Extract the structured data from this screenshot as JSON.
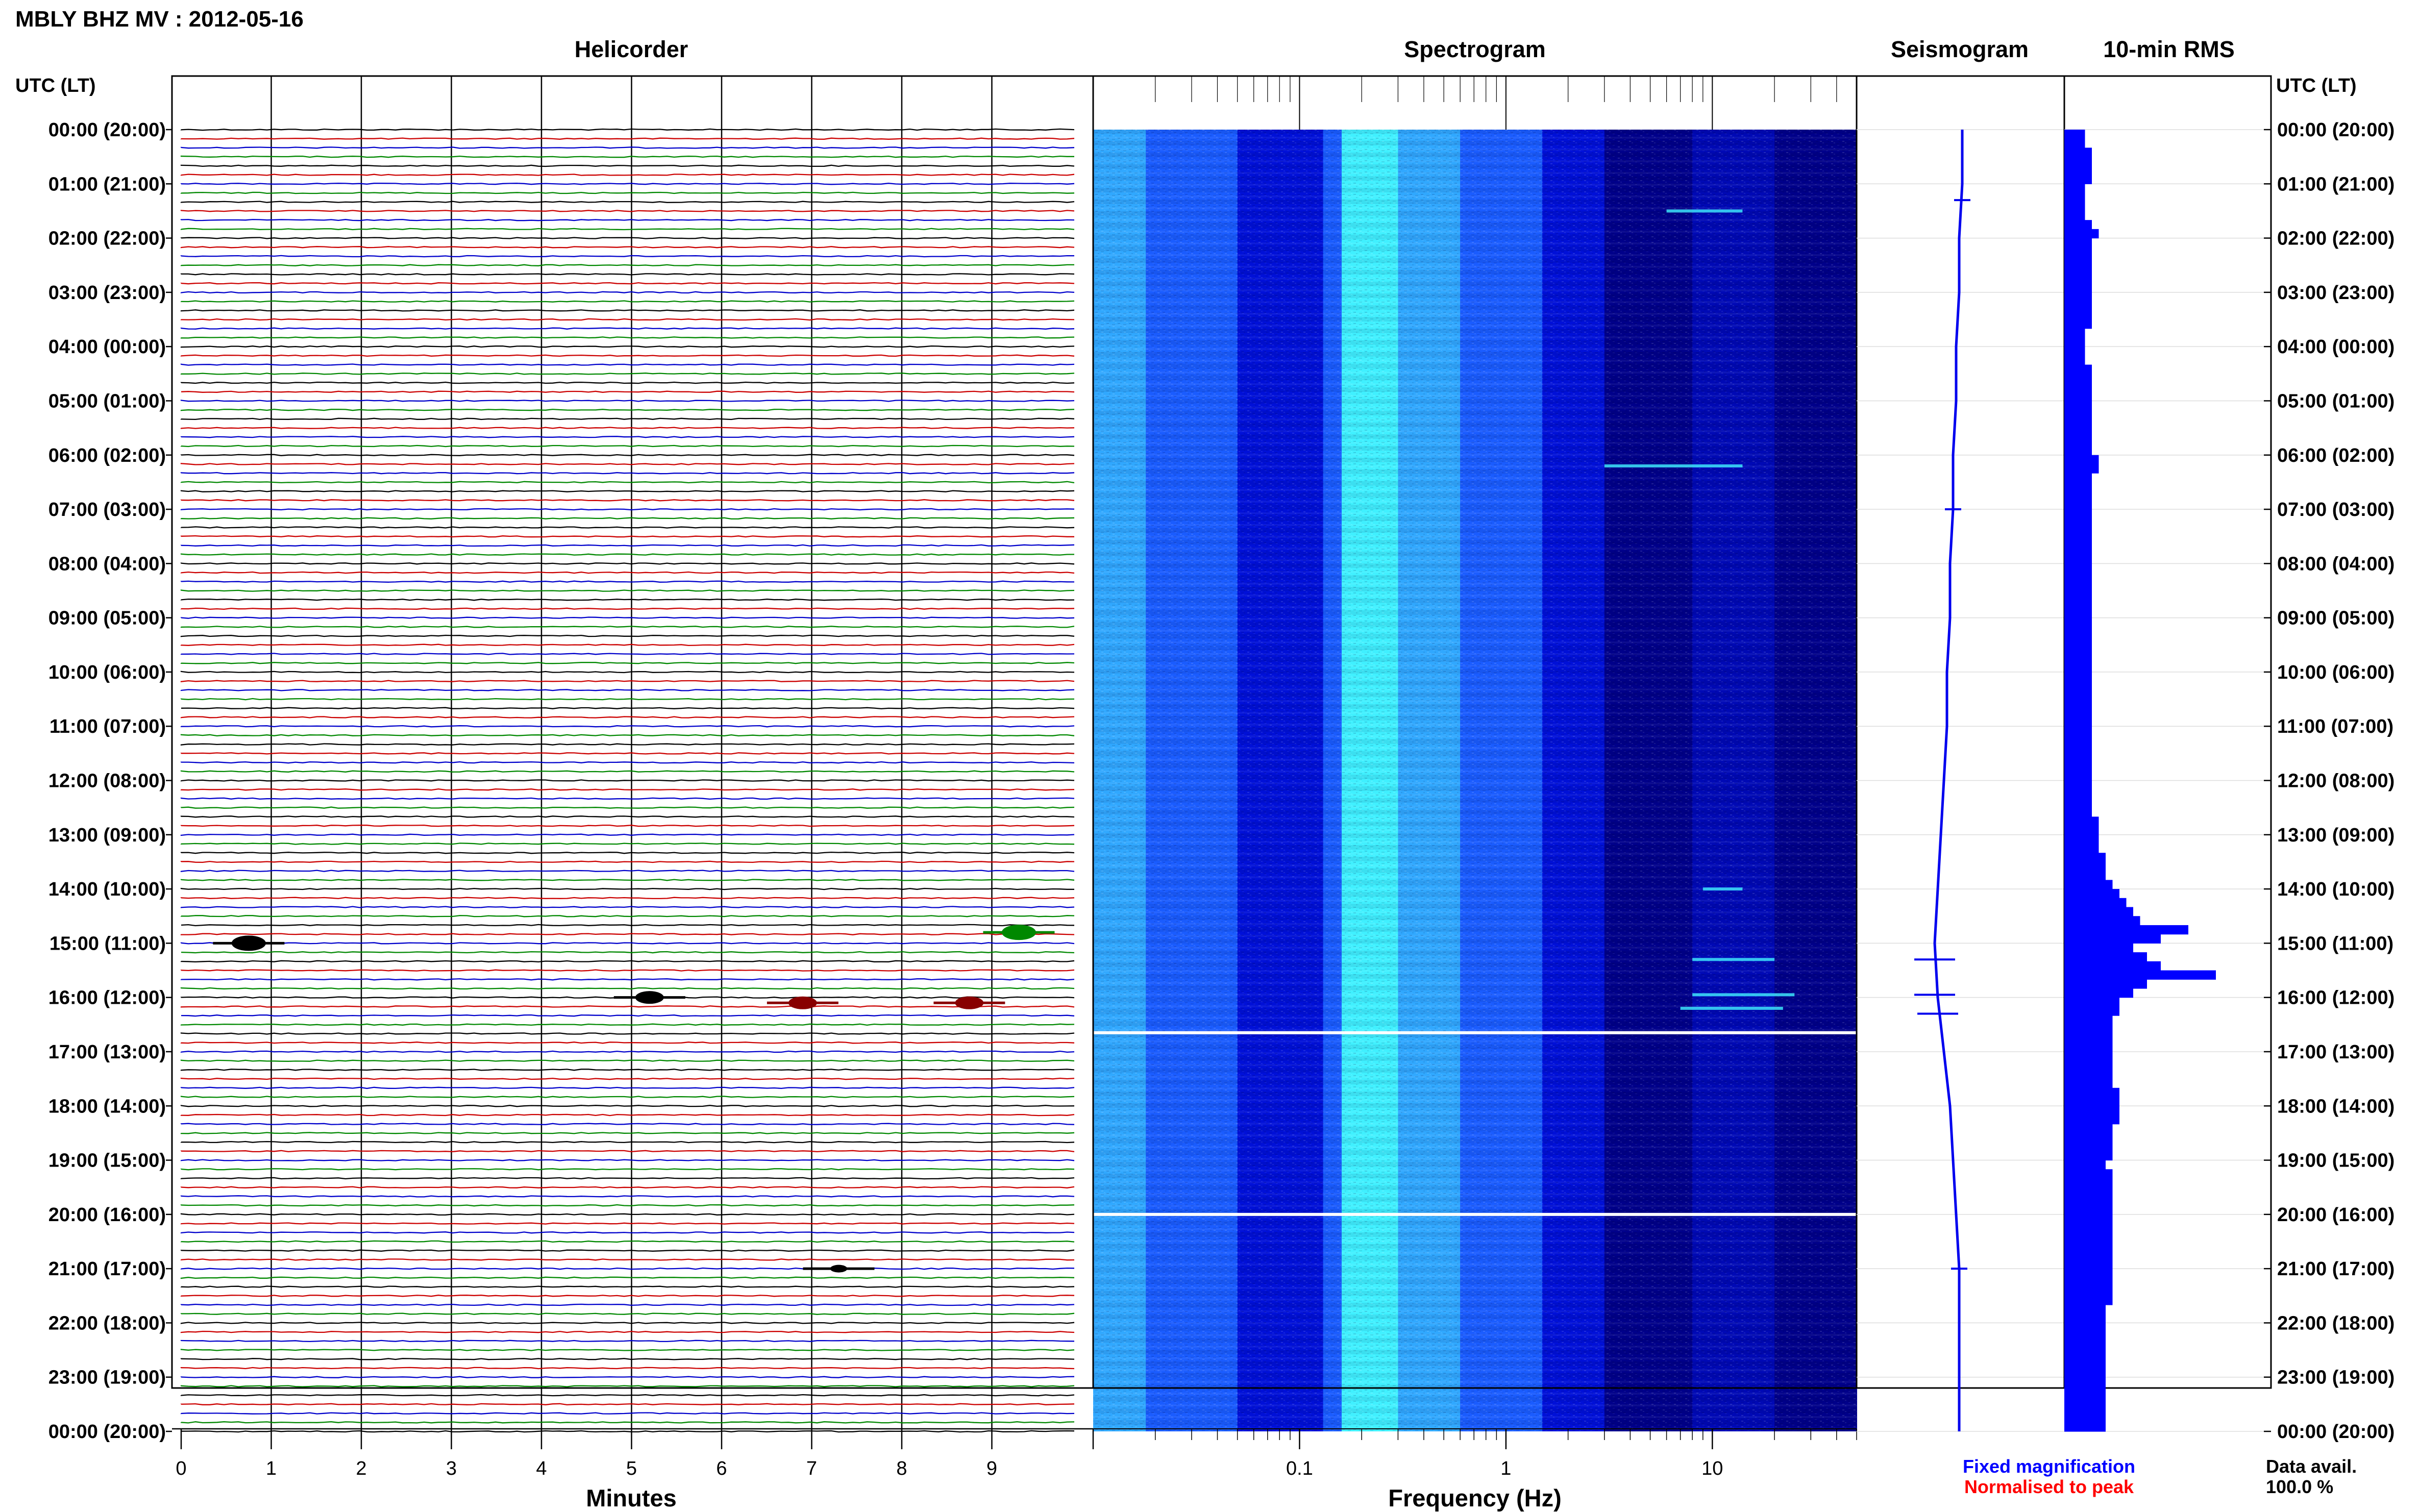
{
  "chart_data": {
    "type": "heatmap",
    "title": "MBLY BHZ MV : 2012-05-16",
    "panels": {
      "helicorder": "Helicorder",
      "spectrogram": "Spectrogram",
      "seismogram": "Seismogram",
      "rms": "10-min RMS"
    },
    "ylabel": "UTC (LT)",
    "ylabel_right": "UTC (LT)",
    "hours": [
      "00:00 (20:00)",
      "01:00 (21:00)",
      "02:00 (22:00)",
      "03:00 (23:00)",
      "04:00 (00:00)",
      "05:00 (01:00)",
      "06:00 (02:00)",
      "07:00 (03:00)",
      "08:00 (04:00)",
      "09:00 (05:00)",
      "10:00 (06:00)",
      "11:00 (07:00)",
      "12:00 (08:00)",
      "13:00 (09:00)",
      "14:00 (10:00)",
      "15:00 (11:00)",
      "16:00 (12:00)",
      "17:00 (13:00)",
      "18:00 (14:00)",
      "19:00 (15:00)",
      "20:00 (16:00)",
      "21:00 (17:00)",
      "22:00 (18:00)",
      "23:00 (19:00)",
      "00:00 (20:00)"
    ],
    "helicorder": {
      "xlabel": "Minutes",
      "xticks": [
        "0",
        "1",
        "2",
        "3",
        "4",
        "5",
        "6",
        "7",
        "8",
        "9"
      ],
      "xlim": [
        0,
        10
      ],
      "line_colors": [
        "#000000",
        "#cc0000",
        "#0000cc",
        "#008800"
      ],
      "lines_per_hour": 6,
      "events": [
        {
          "hour": 15.0,
          "minute": 0.75,
          "amp": 3.0,
          "color": "#000000"
        },
        {
          "hour": 14.8,
          "minute": 9.3,
          "amp": 3.0,
          "color": "#008800"
        },
        {
          "hour": 16.0,
          "minute": 5.2,
          "amp": 2.5,
          "color": "#000000"
        },
        {
          "hour": 16.1,
          "minute": 6.9,
          "amp": 2.5,
          "color": "#880000"
        },
        {
          "hour": 16.1,
          "minute": 8.75,
          "amp": 2.5,
          "color": "#880000"
        },
        {
          "hour": 21.0,
          "minute": 7.3,
          "amp": 1.5,
          "color": "#000000"
        }
      ]
    },
    "spectrogram": {
      "xlabel": "Frequency (Hz)",
      "xticks": [
        "0.1",
        "1",
        "10"
      ],
      "xscale": "log",
      "xlim": [
        0.01,
        50
      ],
      "gaps_hours": [
        16.65,
        20.0
      ],
      "colormap": [
        "#00008a",
        "#0010d8",
        "#1a5cff",
        "#30a8ff",
        "#40f0ff"
      ]
    },
    "seismogram": {
      "trend": [
        0,
        0,
        -1,
        -1,
        -2,
        -2,
        -3,
        -3,
        -4,
        -4,
        -5,
        -5,
        -6,
        -7,
        -8,
        -9,
        -8,
        -6,
        -4,
        -3,
        -2,
        -1,
        -1,
        -1,
        -1
      ],
      "spikes_hours": [
        1.3,
        7.0,
        15.3,
        15.95,
        16.3,
        21.0
      ]
    },
    "rms": {
      "values": [
        3,
        3,
        4,
        4,
        4,
        4,
        3,
        3,
        3,
        3,
        4,
        5,
        4,
        4,
        4,
        4,
        4,
        4,
        4,
        4,
        4,
        4,
        3,
        3,
        3,
        3,
        4,
        4,
        4,
        4,
        4,
        4,
        4,
        4,
        4,
        4,
        5,
        5,
        4,
        4,
        4,
        4,
        4,
        4,
        4,
        4,
        4,
        4,
        4,
        4,
        4,
        4,
        4,
        4,
        4,
        4,
        4,
        4,
        4,
        4,
        4,
        4,
        4,
        4,
        4,
        4,
        4,
        4,
        4,
        4,
        4,
        4,
        4,
        4,
        4,
        4,
        5,
        5,
        5,
        5,
        6,
        6,
        6,
        7,
        8,
        9,
        10,
        11,
        18,
        14,
        10,
        12,
        14,
        22,
        12,
        10,
        8,
        8,
        7,
        7,
        7,
        7,
        7,
        7,
        7,
        7,
        8,
        8,
        8,
        8,
        7,
        7,
        7,
        7,
        6,
        7,
        7,
        7,
        7,
        7,
        7,
        7,
        7,
        7,
        7,
        7,
        7,
        7,
        7,
        7,
        6,
        6,
        6,
        6,
        6,
        6,
        6,
        6,
        6,
        6,
        6,
        6,
        6,
        6
      ],
      "max": 30
    },
    "legend": {
      "fixed": "Fixed magnification",
      "normalised": "Normalised to peak",
      "fixed_color": "#0000ff",
      "normalised_color": "#ff0000"
    },
    "data_avail_label": "Data avail.",
    "data_avail_value": "100.0 %"
  }
}
